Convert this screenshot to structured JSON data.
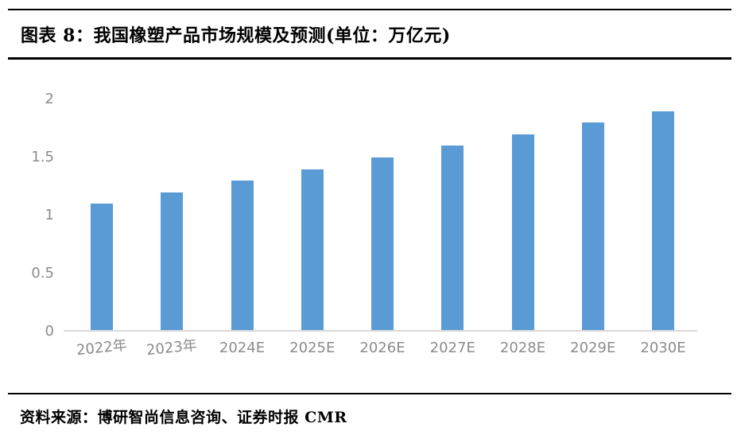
{
  "page": {
    "title": "图表 8：我国橡塑产品市场规模及预测(单位：万亿元)",
    "source": "资料来源：博研智尚信息咨询、证券时报 CMR"
  },
  "colors": {
    "bar": "#5B9BD5",
    "title_underline": "#C00000",
    "divider": "#000000",
    "axis_line": "#D9D9D9",
    "tick_label": "#8C8C8C"
  },
  "chart_data": {
    "type": "bar",
    "title": "我国橡塑产品市场规模及预测",
    "unit": "万亿元",
    "categories": [
      "2022年",
      "2023年",
      "2024E",
      "2025E",
      "2026E",
      "2027E",
      "2028E",
      "2029E",
      "2030E"
    ],
    "values": [
      1.1,
      1.2,
      1.3,
      1.4,
      1.5,
      1.6,
      1.7,
      1.8,
      1.9
    ],
    "xlabel": "",
    "ylabel": "",
    "ylim": [
      0,
      2
    ],
    "yticks": [
      0,
      0.5,
      1,
      1.5,
      2
    ],
    "grid": false,
    "legend": false
  }
}
